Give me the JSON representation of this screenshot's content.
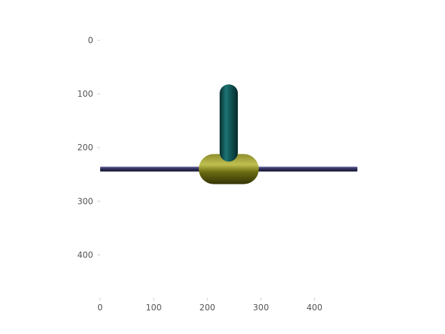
{
  "chart_data": {
    "type": "image",
    "title": "",
    "xlabel": "",
    "ylabel": "",
    "xlim": [
      0,
      480
    ],
    "ylim": [
      0,
      480
    ],
    "y_inverted": true,
    "grid": false,
    "x_ticks": [
      0,
      100,
      200,
      300,
      400
    ],
    "y_ticks": [
      0,
      100,
      200,
      300,
      400
    ],
    "x_tick_labels": [
      "0",
      "100",
      "200",
      "300",
      "400"
    ],
    "y_tick_labels": [
      "0",
      "100",
      "200",
      "300",
      "400"
    ],
    "shapes": [
      {
        "name": "horizontal-rod",
        "kind": "rod",
        "x_range": [
          0,
          480
        ],
        "y": 240,
        "thickness": 9,
        "color": "#2e2e5c"
      },
      {
        "name": "horizontal-capsule",
        "kind": "capsule",
        "x_range": [
          184,
          296
        ],
        "y": 240,
        "thickness": 56,
        "color": "#6b6b10"
      },
      {
        "name": "vertical-capsule",
        "kind": "vertical-capsule",
        "x": 240,
        "y_range": [
          82,
          226
        ],
        "thickness": 34,
        "color": "#0e4f4f"
      }
    ]
  }
}
